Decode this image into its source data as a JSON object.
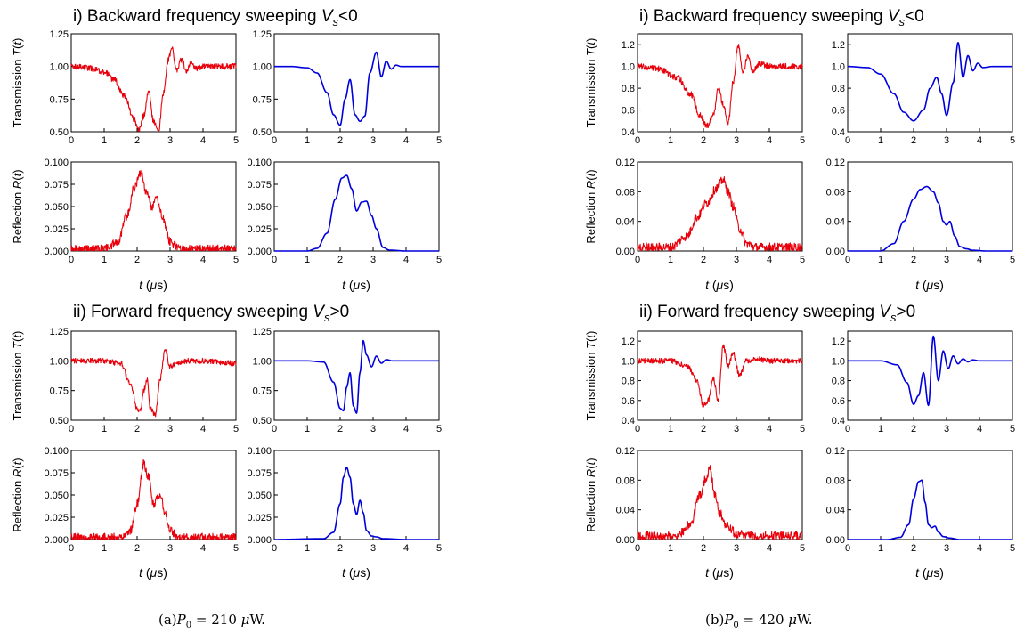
{
  "section_titles": {
    "backward": "i) Backward frequency sweeping V_s<0",
    "forward": "ii) Forward frequency sweeping V_s>0"
  },
  "captions": {
    "a": "(a)P_0 = 210 μW.",
    "b": "(b)P_0 = 420 μW."
  },
  "axis_labels": {
    "transmission": "Transmission T(t)",
    "reflection": "Reflection R(t)",
    "x": "t (μs)"
  },
  "colors": {
    "experiment": "#e8000b",
    "theory": "#0000dd"
  },
  "chart_data": [
    {
      "id": "a-back-T-exp",
      "type": "line",
      "group": "a",
      "section": "backward",
      "quantity": "transmission",
      "source": "experiment",
      "noisy": true,
      "x": [
        0,
        0.5,
        1,
        1.3,
        1.6,
        1.9,
        2.05,
        2.2,
        2.35,
        2.5,
        2.65,
        2.8,
        2.95,
        3.05,
        3.2,
        3.35,
        3.5,
        3.65,
        3.8,
        4,
        4.5,
        5
      ],
      "y": [
        1.0,
        0.99,
        0.96,
        0.9,
        0.78,
        0.6,
        0.51,
        0.62,
        0.81,
        0.58,
        0.5,
        0.8,
        1.05,
        1.14,
        0.97,
        1.05,
        0.96,
        1.03,
        0.98,
        1.0,
        1.0,
        1.0
      ],
      "xlim": [
        0,
        5
      ],
      "ylim": [
        0.5,
        1.25
      ],
      "yticks": [
        "0.50",
        "0.75",
        "1.00",
        "1.25"
      ],
      "xticks": [
        "0",
        "1",
        "2",
        "3",
        "4",
        "5"
      ]
    },
    {
      "id": "a-back-T-th",
      "type": "line",
      "group": "a",
      "section": "backward",
      "quantity": "transmission",
      "source": "theory",
      "noisy": false,
      "x": [
        0,
        0.5,
        1,
        1.3,
        1.6,
        1.8,
        2.0,
        2.15,
        2.3,
        2.45,
        2.6,
        2.75,
        2.9,
        3.1,
        3.25,
        3.4,
        3.55,
        3.7,
        3.85,
        4,
        4.5,
        5
      ],
      "y": [
        1.0,
        1.0,
        0.99,
        0.95,
        0.8,
        0.63,
        0.55,
        0.75,
        0.9,
        0.63,
        0.58,
        0.62,
        0.95,
        1.11,
        0.92,
        1.04,
        0.98,
        1.01,
        1.0,
        1.0,
        1.0,
        1.0
      ],
      "xlim": [
        0,
        5
      ],
      "ylim": [
        0.5,
        1.25
      ],
      "yticks": [
        "0.50",
        "0.75",
        "1.00",
        "1.25"
      ],
      "xticks": [
        "0",
        "1",
        "2",
        "3",
        "4",
        "5"
      ]
    },
    {
      "id": "a-back-R-exp",
      "type": "line",
      "group": "a",
      "section": "backward",
      "quantity": "reflection",
      "source": "experiment",
      "noisy": true,
      "x": [
        0,
        1,
        1.4,
        1.7,
        1.9,
        2.1,
        2.3,
        2.45,
        2.6,
        2.8,
        3.0,
        3.3,
        3.6,
        4,
        5
      ],
      "y": [
        0.002,
        0.002,
        0.01,
        0.04,
        0.07,
        0.088,
        0.065,
        0.05,
        0.06,
        0.035,
        0.01,
        0.003,
        0.002,
        0.002,
        0.002
      ],
      "xlim": [
        0,
        5
      ],
      "ylim": [
        0,
        0.1
      ],
      "yticks": [
        "0.000",
        "0.025",
        "0.050",
        "0.075",
        "0.100"
      ],
      "xticks": [
        "0",
        "1",
        "2",
        "3",
        "4",
        "5"
      ]
    },
    {
      "id": "a-back-R-th",
      "type": "line",
      "group": "a",
      "section": "backward",
      "quantity": "reflection",
      "source": "theory",
      "noisy": false,
      "x": [
        0,
        1,
        1.3,
        1.6,
        1.85,
        2.05,
        2.2,
        2.35,
        2.5,
        2.65,
        2.8,
        2.95,
        3.1,
        3.3,
        3.5,
        4,
        5
      ],
      "y": [
        0,
        0,
        0.003,
        0.02,
        0.058,
        0.082,
        0.085,
        0.07,
        0.045,
        0.055,
        0.056,
        0.04,
        0.025,
        0.004,
        0.001,
        0,
        0
      ],
      "xlim": [
        0,
        5
      ],
      "ylim": [
        0,
        0.1
      ],
      "yticks": [
        "0.000",
        "0.025",
        "0.050",
        "0.075",
        "0.100"
      ],
      "xticks": [
        "0",
        "1",
        "2",
        "3",
        "4",
        "5"
      ]
    },
    {
      "id": "a-fwd-T-exp",
      "type": "line",
      "group": "a",
      "section": "forward",
      "quantity": "transmission",
      "source": "experiment",
      "noisy": true,
      "x": [
        0,
        1,
        1.5,
        1.8,
        2.0,
        2.1,
        2.2,
        2.3,
        2.4,
        2.55,
        2.7,
        2.85,
        3.0,
        3.2,
        3.5,
        4,
        5
      ],
      "y": [
        1.0,
        1.0,
        0.98,
        0.8,
        0.6,
        0.58,
        0.75,
        0.85,
        0.6,
        0.54,
        0.85,
        1.1,
        0.95,
        0.98,
        1.0,
        1.0,
        0.98
      ],
      "xlim": [
        0,
        5
      ],
      "ylim": [
        0.5,
        1.25
      ],
      "yticks": [
        "0.50",
        "0.75",
        "1.00",
        "1.25"
      ],
      "xticks": [
        "0",
        "1",
        "2",
        "3",
        "4",
        "5"
      ]
    },
    {
      "id": "a-fwd-T-th",
      "type": "line",
      "group": "a",
      "section": "forward",
      "quantity": "transmission",
      "source": "theory",
      "noisy": false,
      "x": [
        0,
        1,
        1.5,
        1.8,
        2.0,
        2.1,
        2.2,
        2.3,
        2.4,
        2.5,
        2.6,
        2.7,
        2.8,
        2.95,
        3.1,
        3.25,
        3.4,
        3.6,
        4,
        5
      ],
      "y": [
        1.0,
        1.0,
        0.99,
        0.82,
        0.6,
        0.58,
        0.78,
        0.9,
        0.62,
        0.56,
        0.9,
        1.17,
        1.05,
        0.95,
        1.04,
        0.98,
        1.01,
        1.0,
        1.0,
        1.0
      ],
      "xlim": [
        0,
        5
      ],
      "ylim": [
        0.5,
        1.25
      ],
      "yticks": [
        "0.50",
        "0.75",
        "1.00",
        "1.25"
      ],
      "xticks": [
        "0",
        "1",
        "2",
        "3",
        "4",
        "5"
      ]
    },
    {
      "id": "a-fwd-R-exp",
      "type": "line",
      "group": "a",
      "section": "forward",
      "quantity": "reflection",
      "source": "experiment",
      "noisy": true,
      "x": [
        0,
        1.5,
        1.8,
        2.0,
        2.2,
        2.35,
        2.5,
        2.7,
        2.85,
        3.0,
        3.3,
        4,
        5
      ],
      "y": [
        0.002,
        0.002,
        0.01,
        0.04,
        0.085,
        0.07,
        0.04,
        0.05,
        0.03,
        0.01,
        0.002,
        0.002,
        0.002
      ],
      "xlim": [
        0,
        5
      ],
      "ylim": [
        0,
        0.1
      ],
      "yticks": [
        "0.000",
        "0.025",
        "0.050",
        "0.075",
        "0.100"
      ],
      "xticks": [
        "0",
        "1",
        "2",
        "3",
        "4",
        "5"
      ]
    },
    {
      "id": "a-fwd-R-th",
      "type": "line",
      "group": "a",
      "section": "forward",
      "quantity": "reflection",
      "source": "theory",
      "noisy": false,
      "x": [
        0,
        1.5,
        1.8,
        2.0,
        2.1,
        2.2,
        2.3,
        2.4,
        2.5,
        2.6,
        2.7,
        2.8,
        2.95,
        3.1,
        3.3,
        4,
        5
      ],
      "y": [
        0,
        0.001,
        0.008,
        0.04,
        0.07,
        0.081,
        0.07,
        0.04,
        0.028,
        0.044,
        0.03,
        0.01,
        0.004,
        0.003,
        0.001,
        0,
        0
      ],
      "xlim": [
        0,
        5
      ],
      "ylim": [
        0,
        0.1
      ],
      "yticks": [
        "0.000",
        "0.025",
        "0.050",
        "0.075",
        "0.100"
      ],
      "xticks": [
        "0",
        "1",
        "2",
        "3",
        "4",
        "5"
      ]
    },
    {
      "id": "b-back-T-exp",
      "type": "line",
      "group": "b",
      "section": "backward",
      "quantity": "transmission",
      "source": "experiment",
      "noisy": true,
      "x": [
        0,
        0.6,
        1.2,
        1.6,
        1.9,
        2.1,
        2.3,
        2.45,
        2.6,
        2.75,
        2.9,
        3.05,
        3.2,
        3.35,
        3.5,
        3.7,
        4,
        5
      ],
      "y": [
        1.0,
        0.98,
        0.9,
        0.75,
        0.55,
        0.45,
        0.55,
        0.8,
        0.65,
        0.48,
        0.85,
        1.2,
        0.95,
        1.1,
        0.95,
        1.03,
        1.0,
        1.0
      ],
      "xlim": [
        0,
        5
      ],
      "ylim": [
        0.4,
        1.3
      ],
      "yticks": [
        "0.4",
        "0.6",
        "0.8",
        "1.0",
        "1.2"
      ],
      "xticks": [
        "0",
        "1",
        "2",
        "3",
        "4",
        "5"
      ]
    },
    {
      "id": "b-back-T-th",
      "type": "line",
      "group": "b",
      "section": "backward",
      "quantity": "transmission",
      "source": "theory",
      "noisy": false,
      "x": [
        0,
        0.6,
        1.0,
        1.4,
        1.7,
        2.0,
        2.3,
        2.5,
        2.7,
        2.85,
        3.0,
        3.2,
        3.35,
        3.5,
        3.65,
        3.8,
        3.95,
        4.1,
        4.4,
        5
      ],
      "y": [
        1.0,
        0.99,
        0.93,
        0.75,
        0.58,
        0.5,
        0.6,
        0.8,
        0.9,
        0.75,
        0.55,
        0.85,
        1.22,
        0.9,
        1.1,
        0.96,
        1.03,
        0.99,
        1.0,
        1.0
      ],
      "xlim": [
        0,
        5
      ],
      "ylim": [
        0.4,
        1.3
      ],
      "yticks": [
        "0.4",
        "0.6",
        "0.8",
        "1.0",
        "1.2"
      ],
      "xticks": [
        "0",
        "1",
        "2",
        "3",
        "4",
        "5"
      ]
    },
    {
      "id": "b-back-R-exp",
      "type": "line",
      "group": "b",
      "section": "backward",
      "quantity": "reflection",
      "source": "experiment",
      "noisy": true,
      "x": [
        0,
        1.0,
        1.5,
        1.8,
        2.1,
        2.4,
        2.6,
        2.75,
        2.9,
        3.1,
        3.3,
        3.6,
        4,
        5
      ],
      "y": [
        0.005,
        0.005,
        0.02,
        0.045,
        0.065,
        0.085,
        0.096,
        0.08,
        0.06,
        0.03,
        0.01,
        0.005,
        0.005,
        0.005
      ],
      "xlim": [
        0,
        5
      ],
      "ylim": [
        0,
        0.12
      ],
      "yticks": [
        "0.00",
        "0.04",
        "0.08",
        "0.12"
      ],
      "xticks": [
        "0",
        "1",
        "2",
        "3",
        "4",
        "5"
      ]
    },
    {
      "id": "b-back-R-th",
      "type": "line",
      "group": "b",
      "section": "backward",
      "quantity": "reflection",
      "source": "theory",
      "noisy": false,
      "x": [
        0,
        1.0,
        1.4,
        1.7,
        2.0,
        2.2,
        2.4,
        2.6,
        2.75,
        2.9,
        3.0,
        3.1,
        3.25,
        3.4,
        3.6,
        3.8,
        4.2,
        5
      ],
      "y": [
        0,
        0,
        0.01,
        0.04,
        0.07,
        0.083,
        0.087,
        0.08,
        0.065,
        0.04,
        0.035,
        0.04,
        0.02,
        0.006,
        0.003,
        0.001,
        0,
        0
      ],
      "xlim": [
        0,
        5
      ],
      "ylim": [
        0,
        0.12
      ],
      "yticks": [
        "0.00",
        "0.04",
        "0.08",
        "0.12"
      ],
      "xticks": [
        "0",
        "1",
        "2",
        "3",
        "4",
        "5"
      ]
    },
    {
      "id": "b-fwd-T-exp",
      "type": "line",
      "group": "b",
      "section": "forward",
      "quantity": "transmission",
      "source": "experiment",
      "noisy": true,
      "x": [
        0,
        1,
        1.5,
        1.8,
        2.0,
        2.15,
        2.3,
        2.45,
        2.6,
        2.75,
        2.9,
        3.1,
        3.3,
        3.6,
        4,
        5
      ],
      "y": [
        1.0,
        1.0,
        0.95,
        0.8,
        0.55,
        0.6,
        0.82,
        0.6,
        1.15,
        0.95,
        1.08,
        0.85,
        1.0,
        1.02,
        1.0,
        1.0
      ],
      "xlim": [
        0,
        5
      ],
      "ylim": [
        0.4,
        1.3
      ],
      "yticks": [
        "0.4",
        "0.6",
        "0.8",
        "1.0",
        "1.2"
      ],
      "xticks": [
        "0",
        "1",
        "2",
        "3",
        "4",
        "5"
      ]
    },
    {
      "id": "b-fwd-T-th",
      "type": "line",
      "group": "b",
      "section": "forward",
      "quantity": "transmission",
      "source": "theory",
      "noisy": false,
      "x": [
        0,
        1,
        1.5,
        1.8,
        2.0,
        2.15,
        2.3,
        2.45,
        2.6,
        2.75,
        2.9,
        3.05,
        3.2,
        3.35,
        3.5,
        3.65,
        3.8,
        4.0,
        4.3,
        5
      ],
      "y": [
        1.0,
        1.0,
        0.96,
        0.78,
        0.56,
        0.65,
        0.88,
        0.55,
        1.25,
        0.8,
        1.1,
        0.92,
        1.05,
        0.97,
        1.02,
        0.99,
        1.01,
        1.0,
        1.0,
        1.0
      ],
      "xlim": [
        0,
        5
      ],
      "ylim": [
        0.4,
        1.3
      ],
      "yticks": [
        "0.4",
        "0.6",
        "0.8",
        "1.0",
        "1.2"
      ],
      "xticks": [
        "0",
        "1",
        "2",
        "3",
        "4",
        "5"
      ]
    },
    {
      "id": "b-fwd-R-exp",
      "type": "line",
      "group": "b",
      "section": "forward",
      "quantity": "reflection",
      "source": "experiment",
      "noisy": true,
      "x": [
        0,
        1.2,
        1.6,
        1.9,
        2.05,
        2.2,
        2.35,
        2.5,
        2.7,
        3.0,
        3.5,
        5
      ],
      "y": [
        0.005,
        0.005,
        0.02,
        0.06,
        0.08,
        0.095,
        0.06,
        0.035,
        0.02,
        0.008,
        0.005,
        0.005
      ],
      "xlim": [
        0,
        5
      ],
      "ylim": [
        0,
        0.12
      ],
      "yticks": [
        "0.00",
        "0.04",
        "0.08",
        "0.12"
      ],
      "xticks": [
        "0",
        "1",
        "2",
        "3",
        "4",
        "5"
      ]
    },
    {
      "id": "b-fwd-R-th",
      "type": "line",
      "group": "b",
      "section": "forward",
      "quantity": "reflection",
      "source": "theory",
      "noisy": false,
      "x": [
        0,
        1.2,
        1.6,
        1.85,
        2.0,
        2.15,
        2.25,
        2.35,
        2.45,
        2.55,
        2.65,
        2.75,
        2.9,
        3.1,
        3.4,
        5
      ],
      "y": [
        0,
        0,
        0.003,
        0.02,
        0.055,
        0.078,
        0.08,
        0.05,
        0.02,
        0.016,
        0.018,
        0.01,
        0.004,
        0.002,
        0.0,
        0
      ],
      "xlim": [
        0,
        5
      ],
      "ylim": [
        0,
        0.12
      ],
      "yticks": [
        "0.00",
        "0.04",
        "0.08",
        "0.12"
      ],
      "xticks": [
        "0",
        "1",
        "2",
        "3",
        "4",
        "5"
      ]
    }
  ]
}
